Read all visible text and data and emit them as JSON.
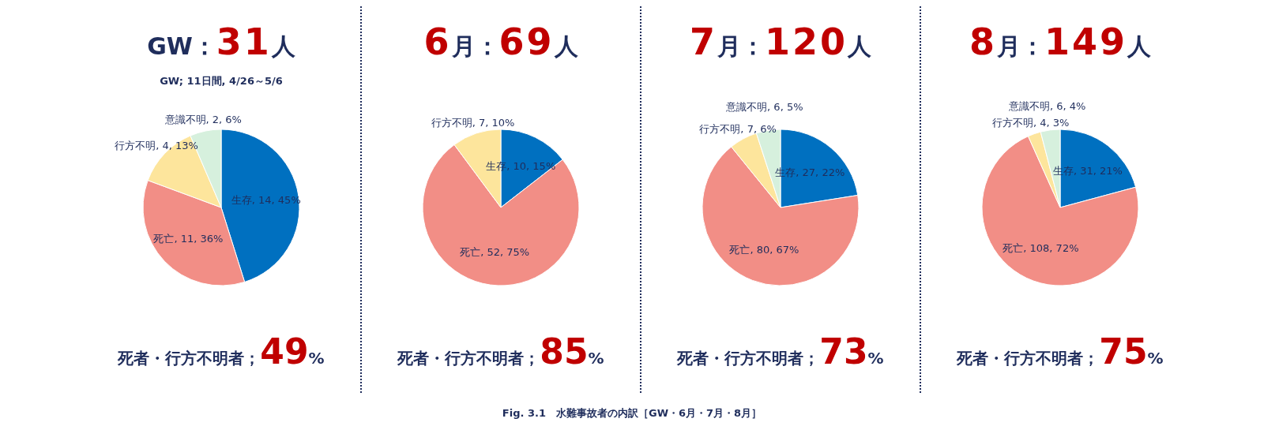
{
  "chart_data": [
    {
      "type": "pie",
      "title": "GW：31人",
      "subtitle": "GW; 11日間, 4/26～5/6",
      "categories": [
        "生存",
        "死亡",
        "行方不明",
        "意識不明"
      ],
      "values": [
        14,
        11,
        4,
        2
      ],
      "colors": [
        "#0070c0",
        "#f28e86",
        "#fde59c",
        "#d6f0dd"
      ],
      "value_labels": [
        "14, 45%",
        "11, 36%",
        "4, 13%",
        "2, 6%"
      ],
      "annotations": [
        "死者・行方不明者；49%",
        "Fig. 3.1　水難事故者の内訳［GW・6月・7月・8月］"
      ]
    },
    {
      "type": "pie",
      "title": "6月：69人",
      "categories": [
        "生存",
        "死亡",
        "行方不明"
      ],
      "values": [
        10,
        52,
        7
      ],
      "colors": [
        "#0070c0",
        "#f28e86",
        "#fde59c"
      ],
      "value_labels": [
        "10, 15%",
        "52, 75%",
        "7, 10%"
      ],
      "annotations": [
        "死者・行方不明者；85%"
      ]
    },
    {
      "type": "pie",
      "title": "7月：120人",
      "categories": [
        "生存",
        "死亡",
        "行方不明",
        "意識不明"
      ],
      "values": [
        27,
        80,
        7,
        6
      ],
      "colors": [
        "#0070c0",
        "#f28e86",
        "#fde59c",
        "#d6f0dd"
      ],
      "value_labels": [
        "27, 22%",
        "80, 67%",
        "7, 6%",
        "6, 5%"
      ],
      "annotations": [
        "死者・行方不明者；73%"
      ]
    },
    {
      "type": "pie",
      "title": "8月：149人",
      "categories": [
        "生存",
        "死亡",
        "行方不明",
        "意識不明"
      ],
      "values": [
        31,
        108,
        4,
        6
      ],
      "colors": [
        "#0070c0",
        "#f28e86",
        "#fde59c",
        "#d6f0dd"
      ],
      "value_labels": [
        "31, 21%",
        "108, 72%",
        "4, 3%",
        "6, 4%"
      ],
      "annotations": [
        "死者・行方不明者；75%"
      ]
    }
  ]
}
